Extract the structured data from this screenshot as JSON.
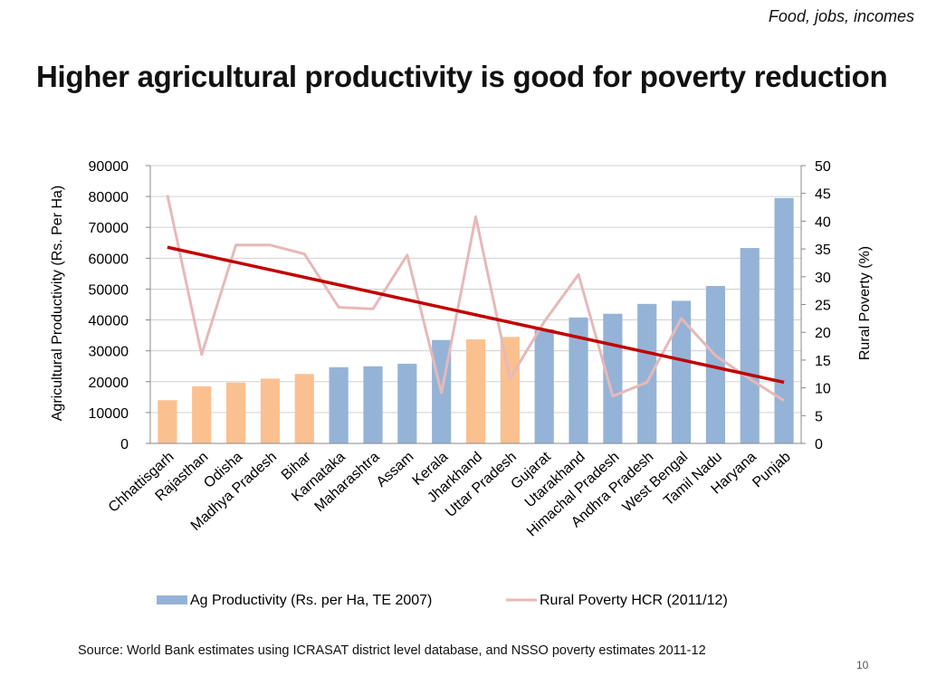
{
  "slide": {
    "tag": "Food, jobs, incomes",
    "title": "Higher agricultural productivity is good for poverty reduction",
    "source": "Source: World Bank estimates using ICRASAT district level database, and NSSO poverty estimates 2011-12",
    "page_number": "10"
  },
  "chart_data": {
    "type": "bar",
    "categories": [
      "Chhattisgarh",
      "Rajasthan",
      "Odisha",
      "Madhya Pradesh",
      "Bihar",
      "Karnataka",
      "Maharashtra",
      "Assam",
      "Kerala",
      "Jharkhand",
      "Uttar Pradesh",
      "Gujarat",
      "Utarakhand",
      "Himachal Pradesh",
      "Andhra Pradesh",
      "West Bengal",
      "Tamil Nadu",
      "Haryana",
      "Punjab"
    ],
    "series": [
      {
        "name": "Ag Productivity (Rs. per Ha, TE 2007)",
        "type": "bar",
        "axis": "left",
        "values": [
          14000,
          18500,
          19700,
          21000,
          22500,
          24700,
          25000,
          25800,
          33500,
          33700,
          34500,
          37000,
          40800,
          42000,
          45200,
          46200,
          51000,
          63300,
          79500
        ],
        "highlight_indices": [
          0,
          1,
          2,
          3,
          4,
          9,
          10
        ],
        "color": "#95b3d7",
        "highlight_color": "#fac090"
      },
      {
        "name": "Rural Poverty HCR (2011/12)",
        "type": "line",
        "axis": "right",
        "values": [
          44.7,
          16.0,
          35.7,
          35.7,
          34.1,
          24.5,
          24.2,
          33.9,
          9.1,
          40.8,
          11.7,
          21.9,
          30.4,
          8.5,
          11.0,
          22.5,
          15.8,
          11.6,
          7.7
        ],
        "color": "#e6b9b8"
      },
      {
        "type": "trend",
        "axis": "right",
        "start": 35.3,
        "end": 11.0,
        "color": "#c00000"
      }
    ],
    "left_axis": {
      "label": "Agricultural Productivity (Rs. Per Ha)",
      "min": 0,
      "max": 90000,
      "step": 10000
    },
    "right_axis": {
      "label": "Rural Poverty (%)",
      "min": 0,
      "max": 50,
      "step": 5
    },
    "gridlines": true,
    "legend_position": "bottom"
  }
}
